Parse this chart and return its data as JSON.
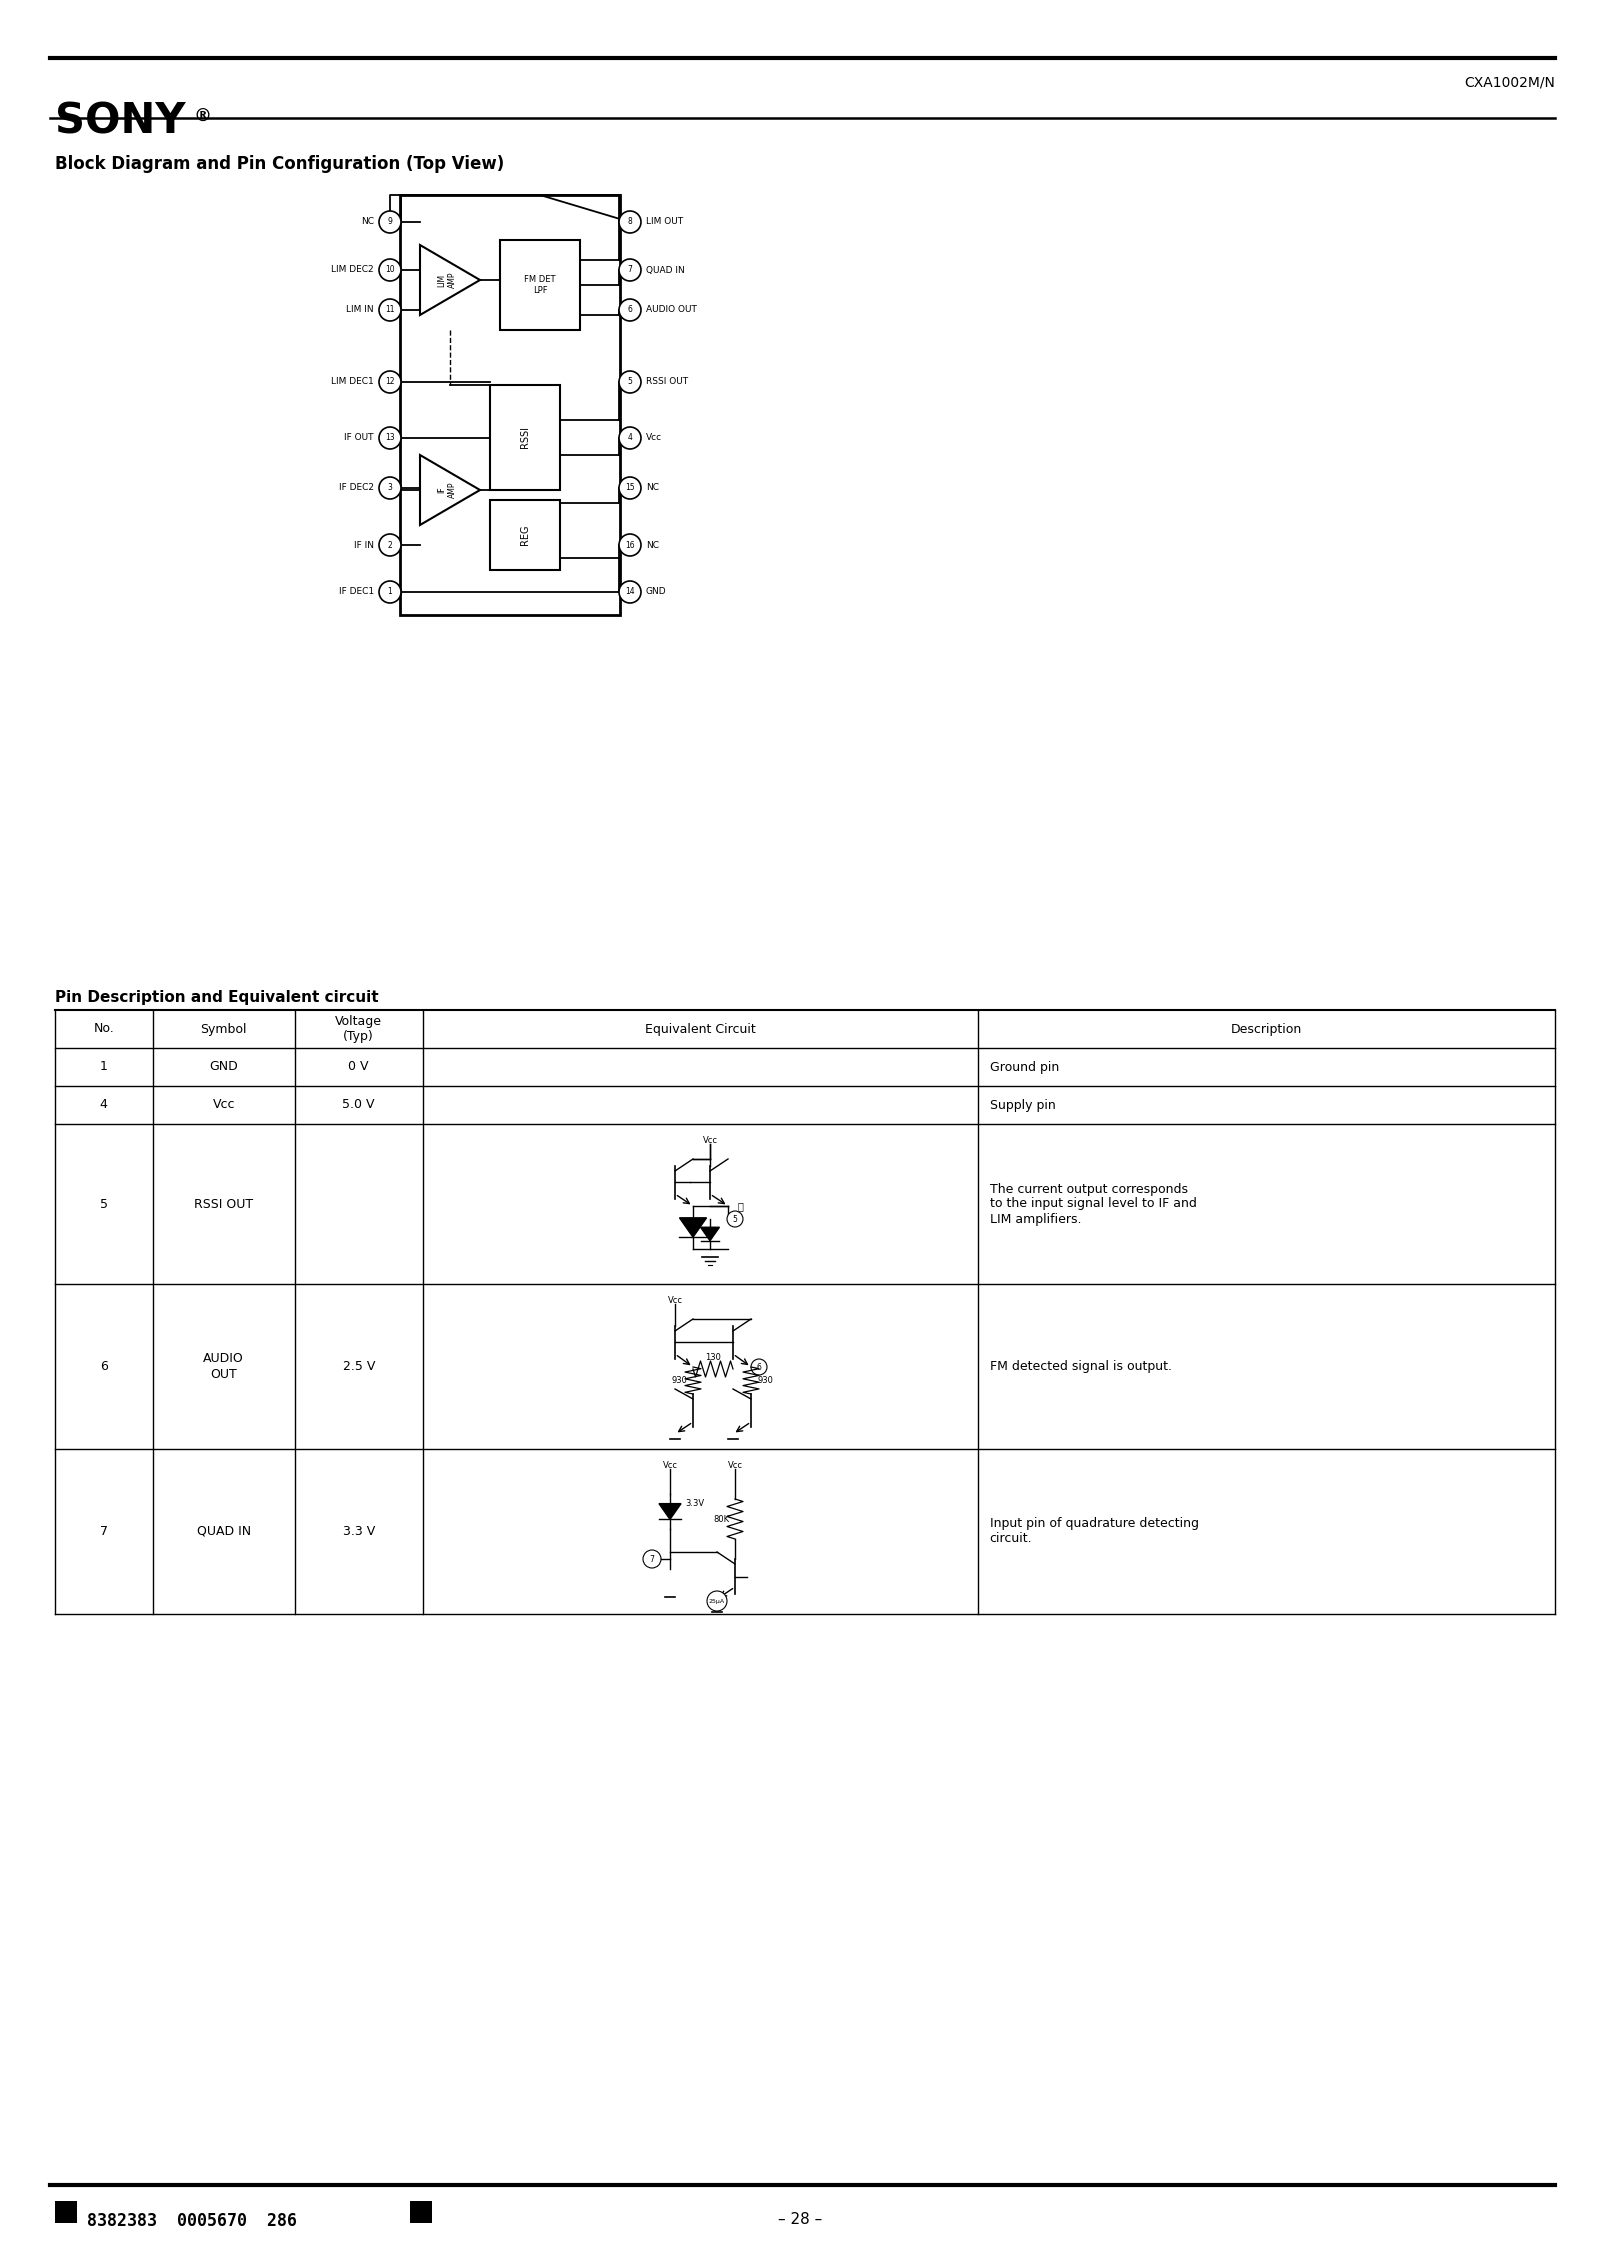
{
  "page_title": "CXA1002M/N",
  "section_title": "Block Diagram and Pin Configuration (Top View)",
  "table_title": "Pin Description and Equivalent circuit",
  "table_headers": [
    "No.",
    "Symbol",
    "Voltage\n(Typ)",
    "Equivalent Circuit",
    "Description"
  ],
  "table_rows": [
    {
      "no": "1",
      "symbol": "GND",
      "voltage": "0 V",
      "desc": "Ground pin"
    },
    {
      "no": "4",
      "symbol": "Vcc",
      "voltage": "5.0 V",
      "desc": "Supply pin"
    },
    {
      "no": "5",
      "symbol": "RSSI OUT",
      "voltage": "",
      "desc": "The current output corresponds\nto the input signal level to IF and\nLIM amplifiers."
    },
    {
      "no": "6",
      "symbol": "AUDIO\nOUT",
      "voltage": "2.5 V",
      "desc": "FM detected signal is output."
    },
    {
      "no": "7",
      "symbol": "QUAD IN",
      "voltage": "3.3 V",
      "desc": "Input pin of quadrature detecting\ncircuit."
    }
  ],
  "footer_barcode": "8382383  0005670  286",
  "footer_page": "– 28 –",
  "bg_color": "#ffffff"
}
